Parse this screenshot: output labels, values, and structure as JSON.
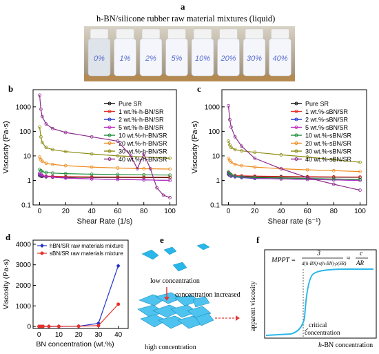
{
  "figure": {
    "panel_labels": [
      "a",
      "b",
      "c",
      "d",
      "e",
      "f"
    ],
    "colors": {
      "accent_cyan": "#29b6e8",
      "red_arrow": "#e23a3a",
      "bottle_fill": "#f4f6fb",
      "bottle_cap": "#f2f2f2",
      "bottle_label": "#5a6fd0",
      "shelf": "#b58a52"
    }
  },
  "panel_a": {
    "title": "h-BN/silicone rubber raw material mixtures (liquid)",
    "bottles": [
      "0%",
      "1%",
      "2%",
      "5%",
      "10%",
      "20%",
      "30%",
      "40%"
    ]
  },
  "chart_data": [
    {
      "id": "b",
      "type": "line",
      "ylabel": "Viscosity (Pa·s)",
      "xlabel": "Shear Rate (1/s)",
      "xlim": [
        -5,
        105
      ],
      "ylim": [
        0.1,
        5000
      ],
      "yscale": "log",
      "xticks": [
        0,
        20,
        40,
        60,
        80,
        100
      ],
      "yticks": [
        0.1,
        1,
        10,
        100,
        1000
      ],
      "legend_placement": "top-right",
      "grid": false,
      "series": [
        {
          "name": "Pure SR",
          "color": "#111111",
          "x": [
            0,
            1,
            2,
            5,
            10,
            20,
            40,
            60,
            80,
            100
          ],
          "values": [
            1.6,
            1.5,
            1.45,
            1.4,
            1.38,
            1.35,
            1.33,
            1.32,
            1.31,
            1.3
          ]
        },
        {
          "name": "1 wt.%-h-BN/SR",
          "color": "#e8302a",
          "x": [
            0,
            1,
            2,
            5,
            10,
            20,
            40,
            60,
            80,
            100
          ],
          "values": [
            1.7,
            1.6,
            1.55,
            1.5,
            1.47,
            1.42,
            1.4,
            1.38,
            1.37,
            1.36
          ]
        },
        {
          "name": "2 wt.%-h-BN/SR",
          "color": "#2233cc",
          "x": [
            0,
            1,
            2,
            5,
            10,
            20,
            40,
            60,
            80,
            100
          ],
          "values": [
            1.8,
            1.65,
            1.55,
            1.45,
            1.35,
            1.25,
            1.15,
            1.1,
            1.05,
            1.0
          ]
        },
        {
          "name": "5 wt.%-h-BN/SR",
          "color": "#c030c0",
          "x": [
            0,
            1,
            2,
            5,
            10,
            20,
            40,
            60,
            80,
            100
          ],
          "values": [
            2.0,
            1.8,
            1.6,
            1.45,
            1.35,
            1.25,
            1.15,
            1.1,
            1.05,
            1.0
          ]
        },
        {
          "name": "10 wt.%-h-BN/SR",
          "color": "#1e8c3a",
          "x": [
            0,
            1,
            2,
            5,
            10,
            20,
            40,
            60,
            80,
            100
          ],
          "values": [
            2.8,
            2.5,
            2.3,
            2.1,
            2.0,
            1.9,
            1.8,
            1.75,
            1.7,
            1.65
          ]
        },
        {
          "name": "20 wt.%-h-BN/SR",
          "color": "#ee8a1c",
          "x": [
            0,
            1,
            2,
            5,
            10,
            20,
            40,
            60,
            80,
            100
          ],
          "values": [
            9,
            7,
            6,
            5,
            4.5,
            4,
            3.5,
            3.2,
            3,
            2.9
          ]
        },
        {
          "name": "30 wt.%-h-BN/SR",
          "color": "#8c8c14",
          "x": [
            0,
            1,
            2,
            5,
            10,
            20,
            40,
            60,
            80,
            100
          ],
          "values": [
            150,
            60,
            35,
            22,
            18,
            15,
            12,
            10,
            9,
            8
          ]
        },
        {
          "name": "40 wt.%-h-BN/SR",
          "color": "#8c2a8c",
          "x": [
            0,
            1,
            2,
            5,
            10,
            20,
            40,
            60,
            70,
            75,
            80,
            85,
            90,
            95,
            100
          ],
          "values": [
            3000,
            800,
            400,
            200,
            130,
            90,
            60,
            40,
            10,
            3,
            12,
            3,
            0.5,
            0.25,
            0.2
          ]
        }
      ]
    },
    {
      "id": "c",
      "type": "line",
      "ylabel": "Viscosity (Pa·s)",
      "xlabel": "Shear rate (s⁻¹)",
      "xlim": [
        -5,
        105
      ],
      "ylim": [
        0.1,
        5000
      ],
      "yscale": "log",
      "xticks": [
        0,
        20,
        40,
        60,
        80,
        100
      ],
      "yticks": [
        0.1,
        1,
        10,
        100,
        1000
      ],
      "legend_placement": "top-right",
      "grid": false,
      "series": [
        {
          "name": "Pure SR",
          "color": "#111111",
          "x": [
            0,
            1,
            2,
            5,
            10,
            20,
            40,
            60,
            80,
            100
          ],
          "values": [
            1.8,
            1.6,
            1.5,
            1.45,
            1.42,
            1.4,
            1.38,
            1.36,
            1.35,
            1.34
          ]
        },
        {
          "name": "1 wt.%-sBN/SR",
          "color": "#e8302a",
          "x": [
            0,
            1,
            2,
            5,
            10,
            20,
            40,
            60,
            80,
            100
          ],
          "values": [
            2.0,
            1.8,
            1.7,
            1.6,
            1.55,
            1.5,
            1.45,
            1.42,
            1.4,
            1.38
          ]
        },
        {
          "name": "2 wt.%-sBN/SR",
          "color": "#2233cc",
          "x": [
            0,
            1,
            2,
            5,
            10,
            20,
            40,
            60,
            80,
            100
          ],
          "values": [
            1.9,
            1.6,
            1.5,
            1.4,
            1.3,
            1.2,
            1.15,
            1.1,
            1.05,
            1.0
          ]
        },
        {
          "name": "5 wt.%-sBN/SR",
          "color": "#c030c0",
          "x": [
            0,
            1,
            2,
            5,
            10,
            20,
            40,
            60,
            80,
            100
          ],
          "values": [
            2.1,
            1.8,
            1.6,
            1.45,
            1.35,
            1.25,
            1.15,
            1.1,
            1.05,
            1.0
          ]
        },
        {
          "name": "10 wt.%-sBN/SR",
          "color": "#1e8c3a",
          "x": [
            0,
            1,
            2,
            5,
            10,
            20,
            40,
            60,
            80,
            100
          ],
          "values": [
            2.2,
            1.9,
            1.7,
            1.5,
            1.4,
            1.3,
            1.25,
            1.2,
            1.15,
            1.1
          ]
        },
        {
          "name": "20 wt.%-sBN/SR",
          "color": "#ee8a1c",
          "x": [
            0,
            1,
            2,
            5,
            10,
            20,
            40,
            60,
            80,
            100
          ],
          "values": [
            8,
            6.5,
            5.5,
            4.5,
            4,
            3.5,
            3,
            2.7,
            2.5,
            2.3
          ]
        },
        {
          "name": "30 wt.%-sBN/SR",
          "color": "#8c8c14",
          "x": [
            0,
            1,
            2,
            5,
            10,
            20,
            40,
            60,
            80,
            100
          ],
          "values": [
            40,
            28,
            22,
            18,
            16,
            14,
            11,
            9,
            7,
            5.5
          ]
        },
        {
          "name": "40 wt.%-sBN/SR",
          "color": "#8c2a8c",
          "x": [
            0,
            1,
            2,
            5,
            10,
            20,
            40,
            60,
            80,
            100
          ],
          "values": [
            1100,
            300,
            150,
            60,
            25,
            8,
            3,
            1.3,
            0.7,
            0.4
          ]
        }
      ]
    },
    {
      "id": "d",
      "type": "line",
      "ylabel": "Viscosity (Pa·s)",
      "xlabel": "BN concentration (wt.%)",
      "xlim": [
        -3,
        45
      ],
      "ylim": [
        -100,
        4200
      ],
      "xticks": [
        0,
        10,
        20,
        30,
        40
      ],
      "yticks": [
        0,
        1000,
        2000,
        3000,
        4000
      ],
      "legend_placement": "top-left",
      "grid": false,
      "series": [
        {
          "name": "hBN/SR raw materials mixture",
          "color": "#2233cc",
          "marker": "diamond",
          "x": [
            0,
            1,
            2,
            5,
            10,
            20,
            30,
            40
          ],
          "values": [
            2,
            2,
            2,
            2,
            3,
            9,
            150,
            2950
          ]
        },
        {
          "name": "sBN/SR raw materials mixture",
          "color": "#e8302a",
          "marker": "circle",
          "x": [
            0,
            1,
            2,
            5,
            10,
            20,
            30,
            40
          ],
          "values": [
            2,
            2,
            2,
            2,
            2,
            8,
            40,
            1080
          ]
        }
      ]
    }
  ],
  "panel_e": {
    "low": "low concentration",
    "arrow_label": "concentration increased",
    "high": "high concentration"
  },
  "panel_f": {
    "ylabel": "apparent viscosity",
    "xlabel_prefix": "h",
    "xlabel_rest": "-BN concentration",
    "eq_lhs": "MPPT =",
    "eq_num": "3",
    "eq_den": "d(h-BN)·s(h-BN)·ρ(SR)",
    "eq_approx": "≈",
    "eq_rhs_num": "c",
    "eq_rhs_den": "AR",
    "critical_1": "critical",
    "critical_2": "concentration"
  }
}
